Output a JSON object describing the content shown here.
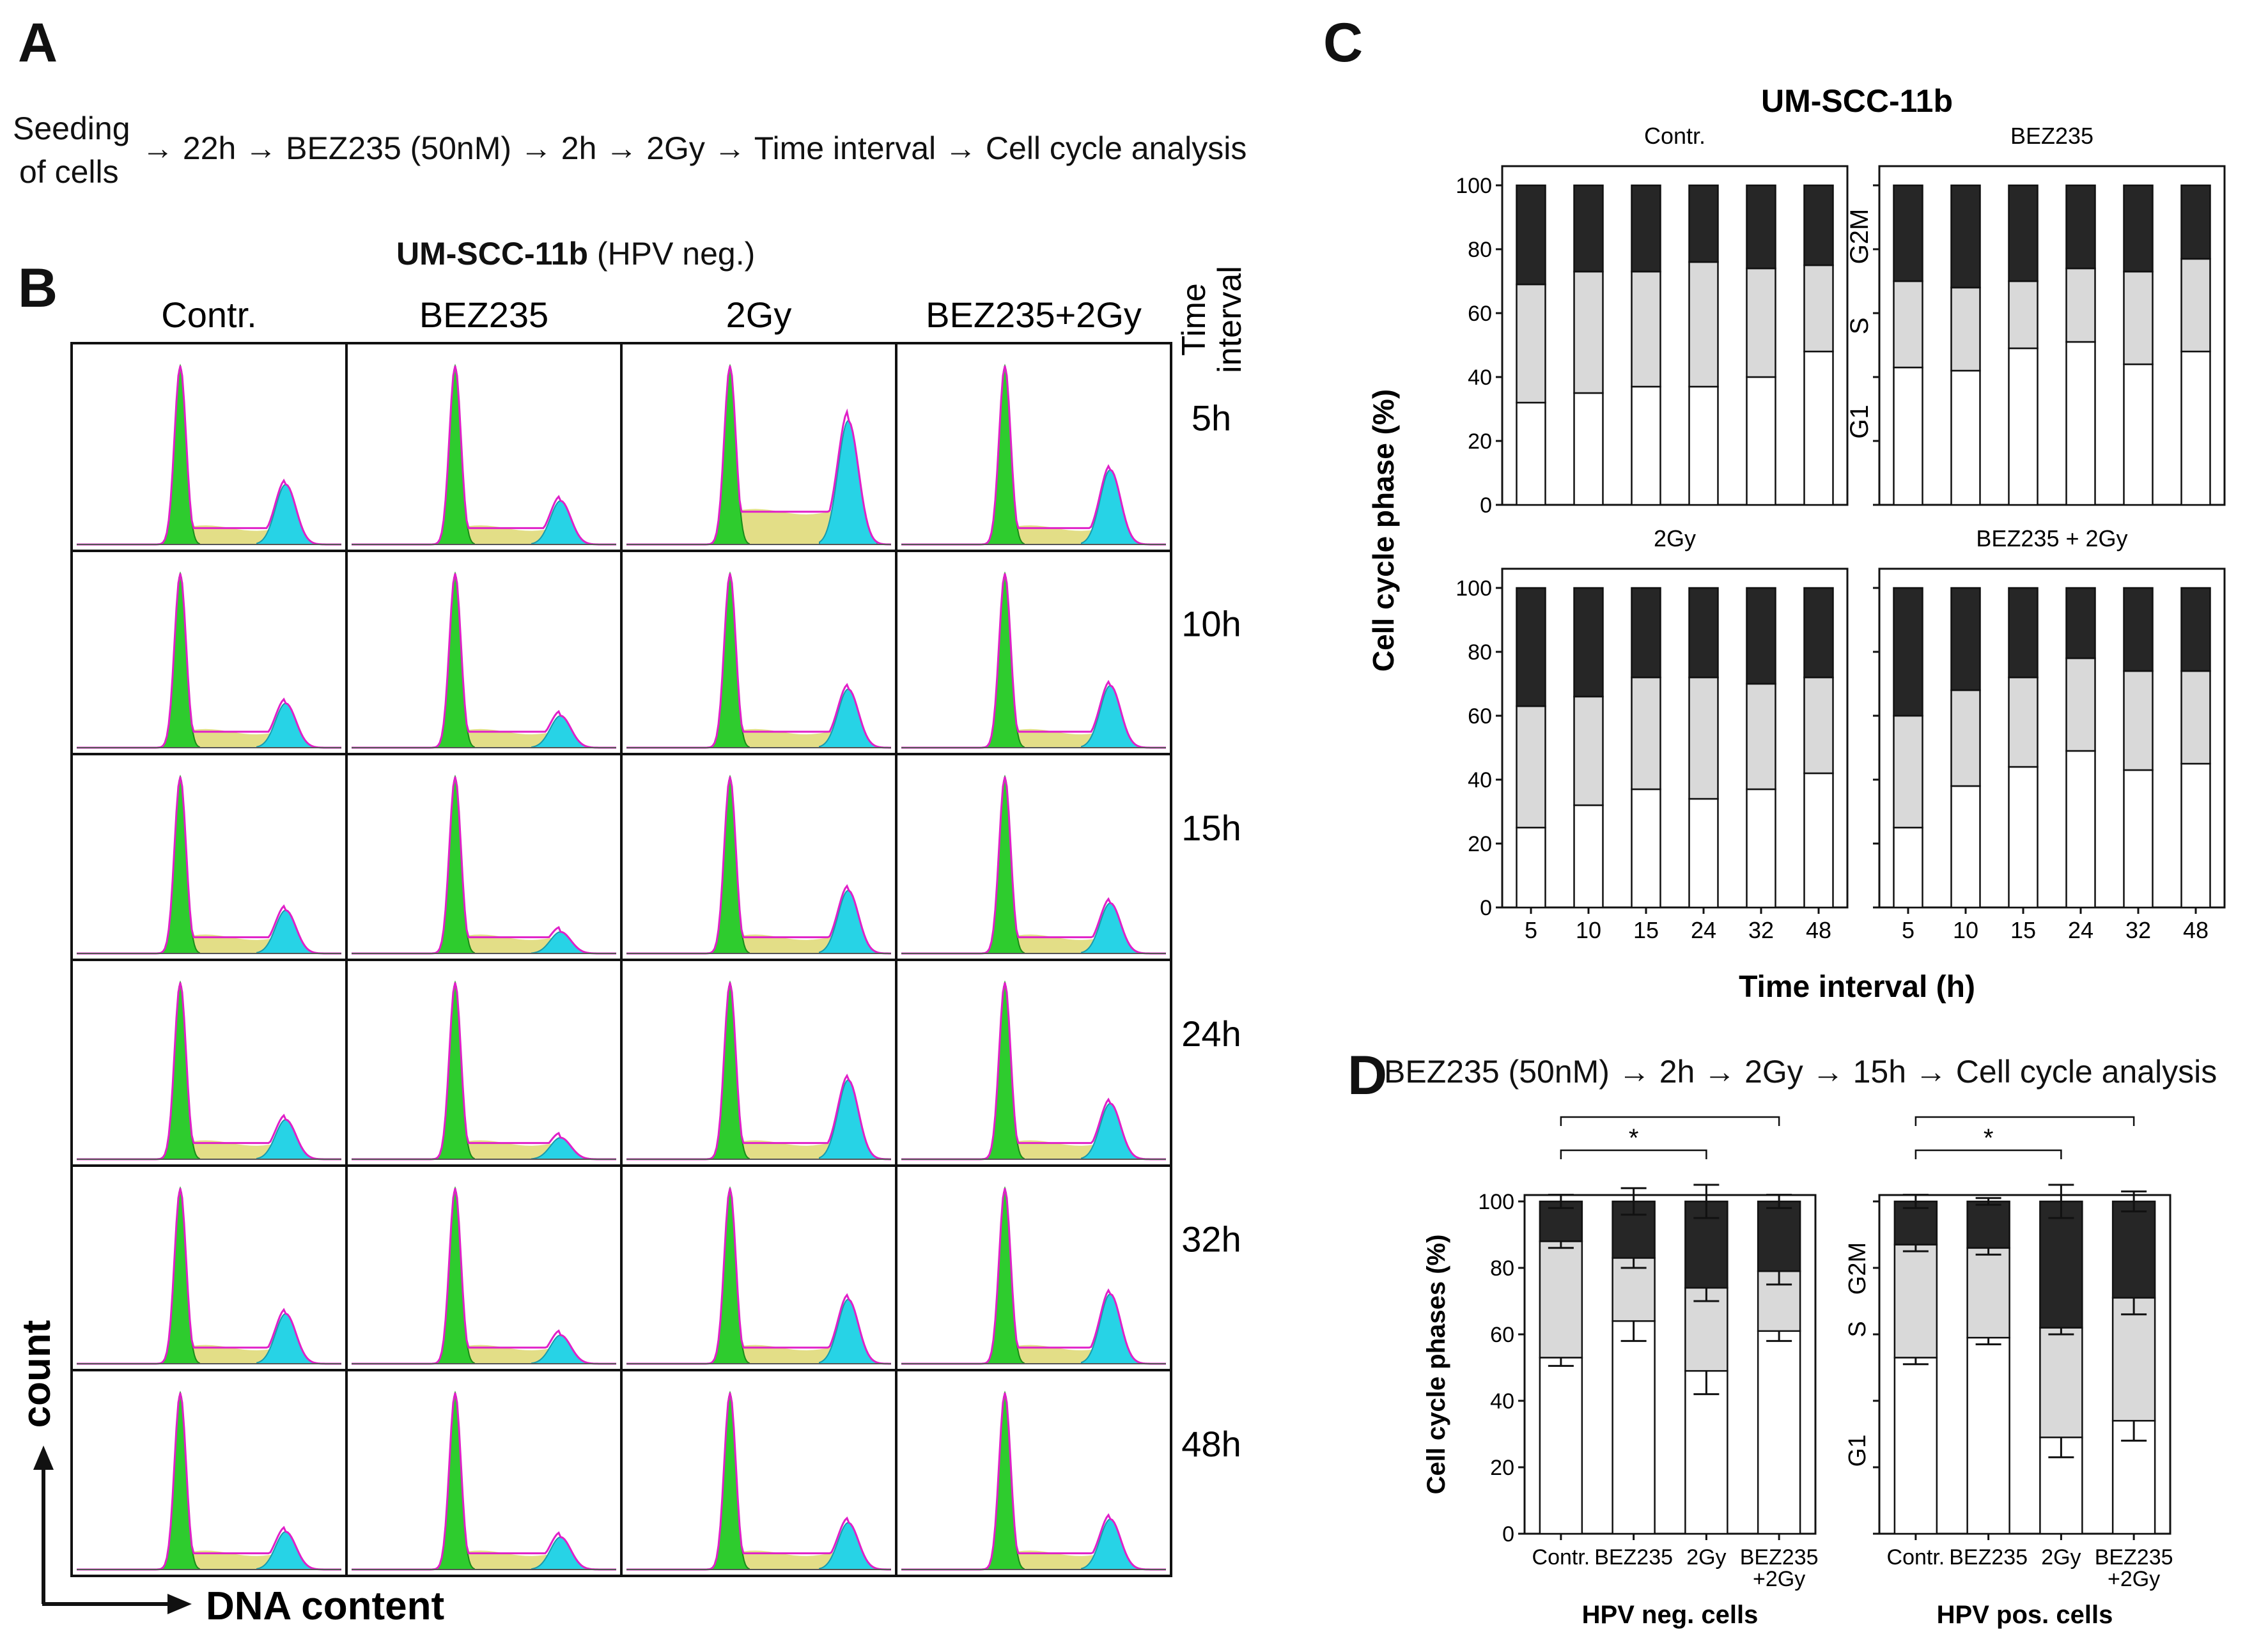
{
  "panelA": {
    "letter": "A",
    "seeding_line1": "Seeding",
    "seeding_line2": "of cells",
    "protocol": "→ 22h → BEZ235 (50nM) → 2h → 2Gy → Time interval → Cell cycle analysis"
  },
  "panelB": {
    "letter": "B",
    "title_bold": "UM-SCC-11b",
    "title_rest": " (HPV neg.)",
    "columns": [
      "Contr.",
      "BEZ235",
      "2Gy",
      "BEZ235+2Gy"
    ],
    "rows": [
      "5h",
      "10h",
      "15h",
      "24h",
      "32h",
      "48h"
    ],
    "time_label": [
      "Time",
      "interval"
    ],
    "y_axis": "count",
    "x_axis": "DNA content",
    "histograms": {
      "Contr.": [
        0.33,
        0.25,
        0.24,
        0.22,
        0.28,
        0.21
      ],
      "BEZ235": [
        0.24,
        0.18,
        0.12,
        0.12,
        0.16,
        0.18
      ],
      "2Gy": [
        0.68,
        0.33,
        0.35,
        0.44,
        0.36,
        0.26
      ],
      "BEZ235+2Gy": [
        0.41,
        0.35,
        0.28,
        0.31,
        0.39,
        0.28
      ]
    },
    "colors": {
      "g1": "#2ecc2e",
      "s": "#e0da7a",
      "g2m": "#27d3e6",
      "fit": "#e020c8"
    }
  },
  "panelC": {
    "letter": "C",
    "main_title": "UM-SCC-11b",
    "ylabel": "Cell cycle phase (%)",
    "xlabel": "Time interval (h)",
    "phase_labels": [
      "G2M",
      "S",
      "G1"
    ]
  },
  "panelD": {
    "letter": "D",
    "protocol": "BEZ235 (50nM) → 2h → 2Gy → 15h → Cell cycle analysis",
    "ylabel": "Cell cycle phases (%)",
    "phase_labels": [
      "G2M",
      "S",
      "G1"
    ],
    "sig_mark": "*"
  },
  "chart_data": [
    {
      "type": "bar",
      "stacked": true,
      "title": "Contr.",
      "categories": [
        "5",
        "10",
        "15",
        "24",
        "32",
        "48"
      ],
      "series": [
        {
          "name": "G1",
          "values": [
            32,
            35,
            37,
            37,
            40,
            48
          ]
        },
        {
          "name": "S",
          "values": [
            37,
            38,
            36,
            39,
            34,
            27
          ]
        },
        {
          "name": "G2M",
          "values": [
            31,
            27,
            27,
            24,
            26,
            25
          ]
        }
      ],
      "ylim": [
        0,
        100
      ],
      "yticks": [
        0,
        20,
        40,
        60,
        80,
        100
      ],
      "colors": {
        "G1": "#ffffff",
        "S": "#d9d9d9",
        "G2M": "#262626"
      }
    },
    {
      "type": "bar",
      "stacked": true,
      "title": "BEZ235",
      "categories": [
        "5",
        "10",
        "15",
        "24",
        "32",
        "48"
      ],
      "series": [
        {
          "name": "G1",
          "values": [
            43,
            42,
            49,
            51,
            44,
            48
          ]
        },
        {
          "name": "S",
          "values": [
            27,
            26,
            21,
            23,
            29,
            29
          ]
        },
        {
          "name": "G2M",
          "values": [
            30,
            32,
            30,
            26,
            27,
            23
          ]
        }
      ],
      "ylim": [
        0,
        100
      ],
      "yticks": [
        0,
        20,
        40,
        60,
        80,
        100
      ],
      "colors": {
        "G1": "#ffffff",
        "S": "#d9d9d9",
        "G2M": "#262626"
      }
    },
    {
      "type": "bar",
      "stacked": true,
      "title": "2Gy",
      "categories": [
        "5",
        "10",
        "15",
        "24",
        "32",
        "48"
      ],
      "series": [
        {
          "name": "G1",
          "values": [
            25,
            32,
            37,
            34,
            37,
            42
          ]
        },
        {
          "name": "S",
          "values": [
            38,
            34,
            35,
            38,
            33,
            30
          ]
        },
        {
          "name": "G2M",
          "values": [
            37,
            34,
            28,
            28,
            30,
            28
          ]
        }
      ],
      "ylim": [
        0,
        100
      ],
      "yticks": [
        0,
        20,
        40,
        60,
        80,
        100
      ],
      "colors": {
        "G1": "#ffffff",
        "S": "#d9d9d9",
        "G2M": "#262626"
      }
    },
    {
      "type": "bar",
      "stacked": true,
      "title": "BEZ235 + 2Gy",
      "categories": [
        "5",
        "10",
        "15",
        "24",
        "32",
        "48"
      ],
      "series": [
        {
          "name": "G1",
          "values": [
            25,
            38,
            44,
            49,
            43,
            45
          ]
        },
        {
          "name": "S",
          "values": [
            35,
            30,
            28,
            29,
            31,
            29
          ]
        },
        {
          "name": "G2M",
          "values": [
            40,
            32,
            28,
            22,
            26,
            26
          ]
        }
      ],
      "ylim": [
        0,
        100
      ],
      "yticks": [
        0,
        20,
        40,
        60,
        80,
        100
      ],
      "colors": {
        "G1": "#ffffff",
        "S": "#d9d9d9",
        "G2M": "#262626"
      }
    },
    {
      "type": "bar",
      "stacked": true,
      "title": "HPV neg. cells",
      "categories": [
        "Contr.",
        "BEZ235",
        "2Gy",
        "BEZ235\n+2Gy"
      ],
      "series": [
        {
          "name": "G1",
          "values": [
            53,
            64,
            49,
            61
          ],
          "error": [
            2.5,
            6,
            7,
            3
          ]
        },
        {
          "name": "S",
          "values": [
            35,
            19,
            25,
            18
          ],
          "error": [
            2,
            3,
            4,
            4
          ]
        },
        {
          "name": "G2M",
          "values": [
            12,
            17,
            26,
            21
          ],
          "error": [
            2,
            4,
            5,
            2
          ]
        }
      ],
      "ylim": [
        0,
        100
      ],
      "yticks": [
        0,
        20,
        40,
        60,
        80,
        100
      ],
      "significance": [
        {
          "from": "Contr.",
          "to": "2Gy",
          "label": "*"
        },
        {
          "from": "Contr.",
          "to": "BEZ235\n+2Gy",
          "label": "*"
        }
      ]
    },
    {
      "type": "bar",
      "stacked": true,
      "title": "HPV pos. cells",
      "categories": [
        "Contr.",
        "BEZ235",
        "2Gy",
        "BEZ235\n+2Gy"
      ],
      "series": [
        {
          "name": "G1",
          "values": [
            53,
            59,
            29,
            34
          ],
          "error": [
            2,
            2,
            6,
            6
          ]
        },
        {
          "name": "S",
          "values": [
            34,
            27,
            33,
            37
          ],
          "error": [
            2,
            2,
            2,
            5
          ]
        },
        {
          "name": "G2M",
          "values": [
            13,
            14,
            38,
            29
          ],
          "error": [
            2,
            1,
            5,
            3
          ]
        }
      ],
      "ylim": [
        0,
        100
      ],
      "yticks": [
        0,
        20,
        40,
        60,
        80,
        100
      ],
      "significance": [
        {
          "from": "Contr.",
          "to": "2Gy",
          "label": "*"
        },
        {
          "from": "Contr.",
          "to": "BEZ235\n+2Gy",
          "label": "*"
        }
      ]
    }
  ]
}
